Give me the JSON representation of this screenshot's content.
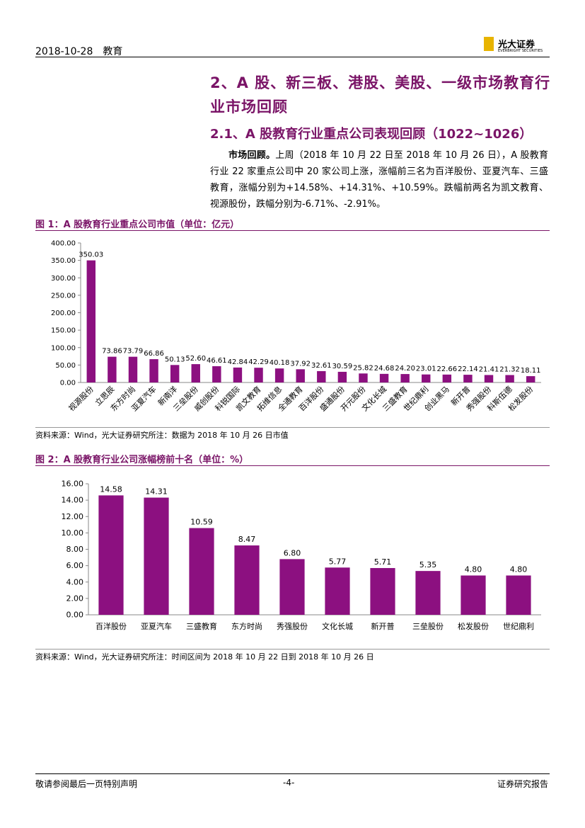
{
  "header": {
    "left": "2018-10-28　教育",
    "logo": "光大证券",
    "logo_en": "EVERBRIGHT SECURITIES"
  },
  "section": {
    "title": "2、A 股、新三板、港股、美股、一级市场教育行业市场回顾",
    "subtitle": "2.1、A 股教育行业重点公司表现回顾（1022~1026）"
  },
  "paragraph": {
    "lead": "市场回顾。",
    "text": "上周（2018 年 10 月 22 日至 2018 年 10 月 26 日），A 股教育行业 22 家重点公司中 20 家公司上涨，涨幅前三名为百洋股份、亚夏汽车、三盛教育，涨幅分别为+14.58%、+14.31%、+10.59%。跌幅前两名为凯文教育、视源股份，跌幅分别为-6.71%、-2.91%。"
  },
  "chart_data": [
    {
      "type": "bar",
      "title": "图 1：A 股教育行业重点公司市值（单位：亿元）",
      "categories": [
        "视源股份",
        "立思辰",
        "东方时尚",
        "亚夏汽车",
        "新南洋",
        "三垒股份",
        "威创股份",
        "科锐国际",
        "凯文教育",
        "拓维信息",
        "全通教育",
        "百洋股份",
        "盛通股份",
        "开元股份",
        "文化长城",
        "三盛教育",
        "世纪鼎利",
        "创业黑马",
        "新开普",
        "秀强股份",
        "科斯伍德",
        "松发股份"
      ],
      "values": [
        350.03,
        73.86,
        73.79,
        66.86,
        50.13,
        52.6,
        46.61,
        42.84,
        42.29,
        40.18,
        37.92,
        32.61,
        30.59,
        25.82,
        24.68,
        24.2,
        23.01,
        22.66,
        22.14,
        21.41,
        21.32,
        18.11
      ],
      "value_labels": [
        "350.03",
        "73.86",
        "73.79",
        "66.86",
        "50.13",
        "52.60",
        "46.61",
        "42.84",
        "42.29",
        "40.18",
        "37.92",
        "32.61",
        "30.59",
        "25.82",
        "24.68",
        "24.20",
        "23.01",
        "22.66",
        "22.14",
        "21.41",
        "21.32",
        "18.11"
      ],
      "color": "#8c1080",
      "ylim": [
        0,
        400
      ],
      "yticks": [
        {
          "value": 0,
          "label": "0.00"
        },
        {
          "value": 50,
          "label": "50.00"
        },
        {
          "value": 100,
          "label": "100.00"
        },
        {
          "value": 150,
          "label": "150.00"
        },
        {
          "value": 200,
          "label": "200.00"
        },
        {
          "value": 250,
          "label": "250.00"
        },
        {
          "value": 300,
          "label": "300.00"
        },
        {
          "value": 350,
          "label": "350.00"
        },
        {
          "value": 400,
          "label": "400.00"
        }
      ],
      "source": "资料来源：Wind，光大证券研究所注：数据为 2018 年 10 月 26 日市值"
    },
    {
      "type": "bar",
      "title": "图 2：A 股教育行业公司涨幅榜前十名（单位：%）",
      "categories": [
        "百洋股份",
        "亚夏汽车",
        "三盛教育",
        "东方时尚",
        "秀强股份",
        "文化长城",
        "新开普",
        "三垒股份",
        "松发股份",
        "世纪鼎利"
      ],
      "values": [
        14.58,
        14.31,
        10.59,
        8.47,
        6.8,
        5.77,
        5.71,
        5.35,
        4.8,
        4.8
      ],
      "value_labels": [
        "14.58",
        "14.31",
        "10.59",
        "8.47",
        "6.80",
        "5.77",
        "5.71",
        "5.35",
        "4.80",
        "4.80"
      ],
      "color": "#8c1080",
      "ylim": [
        0,
        16
      ],
      "yticks": [
        {
          "value": 0,
          "label": "0.00"
        },
        {
          "value": 2,
          "label": "2.00"
        },
        {
          "value": 4,
          "label": "4.00"
        },
        {
          "value": 6,
          "label": "6.00"
        },
        {
          "value": 8,
          "label": "8.00"
        },
        {
          "value": 10,
          "label": "10.00"
        },
        {
          "value": 12,
          "label": "12.00"
        },
        {
          "value": 14,
          "label": "14.00"
        },
        {
          "value": 16,
          "label": "16.00"
        }
      ],
      "source": "资料来源：Wind，光大证券研究所注：时间区间为 2018 年 10 月 22 日到 2018 年 10 月 26 日"
    }
  ],
  "footer": {
    "left": "敬请参阅最后一页特别声明",
    "center": "-4-",
    "right": "证券研究报告"
  }
}
